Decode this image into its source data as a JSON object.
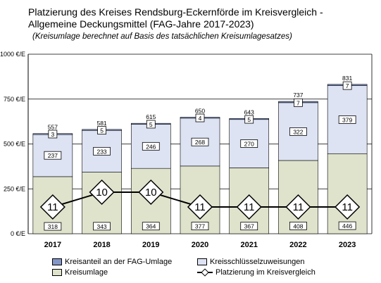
{
  "title_line1": "Platzierung des Kreises Rendsburg-Eckernförde im Kreisvergleich -",
  "title_line2": "Allgemeine Deckungsmittel (FAG-Jahre 2017-2023)",
  "subtitle": "(Kreisumlage berechnet auf Basis des tatsächlichen Kreisumlagesatzes)",
  "legend": {
    "kreisanteil": "Kreisanteil an der FAG-Umlage",
    "kreisumlage": "Kreisumlage",
    "schluessel": "Kreisschlüsselzuweisungen",
    "platzierung": "Platzierung im Kreisvergleich"
  },
  "colors": {
    "kreisumlage": "#dfe3cc",
    "schluessel": "#dde3f3",
    "kreisanteil": "#8496c7",
    "grid": "#000000"
  },
  "chart_data": {
    "type": "bar",
    "stacked": true,
    "categories": [
      "2017",
      "2018",
      "2019",
      "2020",
      "2021",
      "2022",
      "2023"
    ],
    "y_ticks": [
      "0 €/E",
      "250 €/E",
      "500 €/E",
      "750 €/E",
      "1000 €/E"
    ],
    "ylim": [
      0,
      1000
    ],
    "series": [
      {
        "name": "Kreisumlage",
        "values": [
          318,
          343,
          364,
          377,
          367,
          408,
          446
        ]
      },
      {
        "name": "Kreisschlüsselzuweisungen",
        "values": [
          237,
          233,
          246,
          268,
          270,
          322,
          379
        ]
      },
      {
        "name": "Kreisanteil an der FAG-Umlage",
        "values": [
          3,
          5,
          5,
          4,
          5,
          7,
          7
        ]
      }
    ],
    "totals": [
      557,
      581,
      615,
      650,
      643,
      737,
      831
    ],
    "line": {
      "name": "Platzierung im Kreisvergleich",
      "values": [
        11,
        10,
        10,
        11,
        11,
        11,
        11
      ]
    }
  }
}
